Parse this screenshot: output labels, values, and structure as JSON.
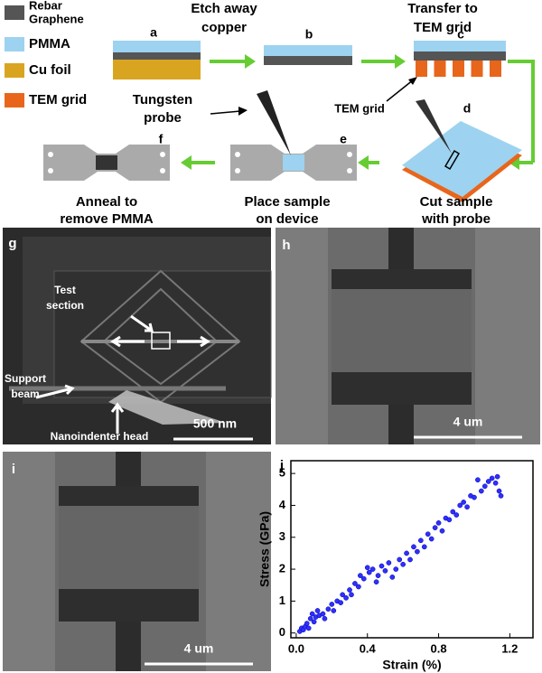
{
  "legend": [
    [
      "Rebar",
      "Graphene"
    ],
    [
      "PMMA"
    ],
    [
      "Cu foil"
    ],
    [
      "TEM grid"
    ]
  ],
  "schematic": {
    "letters": [
      "a",
      "b",
      "c",
      "d",
      "e",
      "f"
    ],
    "etch": [
      "Etch away",
      "copper"
    ],
    "transfer": [
      "Transfer to",
      "TEM grid"
    ],
    "tem_grid": "TEM grid",
    "probe": [
      "Tungsten",
      "probe"
    ],
    "cut": [
      "Cut sample",
      "with probe"
    ],
    "place": [
      "Place sample",
      "on device"
    ],
    "anneal": [
      "Anneal to",
      "remove PMMA"
    ]
  },
  "sem": {
    "g": {
      "letter": "g",
      "test_section": [
        "Test",
        "section"
      ],
      "support_beam": [
        "Support",
        "beam"
      ],
      "indenter": "Nanoindenter head",
      "scale": "500 nm"
    },
    "h": {
      "letter": "h",
      "scale": "4 um"
    },
    "i": {
      "letter": "i",
      "scale": "4 um"
    }
  },
  "chart_data": {
    "type": "scatter",
    "panel_letter": "j",
    "x_label": "Strain (%)",
    "y_label": "Stress (GPa)",
    "x": [
      0.02,
      0.03,
      0.04,
      0.05,
      0.06,
      0.07,
      0.08,
      0.09,
      0.1,
      0.11,
      0.12,
      0.13,
      0.15,
      0.16,
      0.18,
      0.2,
      0.21,
      0.23,
      0.25,
      0.26,
      0.28,
      0.3,
      0.31,
      0.33,
      0.35,
      0.36,
      0.38,
      0.4,
      0.41,
      0.43,
      0.45,
      0.46,
      0.48,
      0.5,
      0.52,
      0.54,
      0.56,
      0.58,
      0.6,
      0.62,
      0.64,
      0.66,
      0.68,
      0.7,
      0.72,
      0.74,
      0.76,
      0.78,
      0.8,
      0.82,
      0.84,
      0.86,
      0.88,
      0.9,
      0.92,
      0.94,
      0.96,
      0.98,
      1.0,
      1.02,
      1.04,
      1.06,
      1.08,
      1.1,
      1.12,
      1.13,
      1.14,
      1.15
    ],
    "y": [
      0.05,
      0.15,
      0.1,
      0.2,
      0.3,
      0.15,
      0.45,
      0.6,
      0.35,
      0.5,
      0.7,
      0.55,
      0.6,
      0.45,
      0.75,
      0.9,
      0.7,
      1.0,
      0.95,
      1.2,
      1.1,
      1.35,
      1.2,
      1.55,
      1.45,
      1.8,
      1.7,
      2.05,
      1.9,
      2.0,
      1.6,
      1.8,
      2.1,
      1.95,
      2.2,
      1.75,
      2.0,
      2.3,
      2.15,
      2.5,
      2.3,
      2.7,
      2.55,
      2.9,
      2.7,
      3.1,
      2.95,
      3.3,
      3.45,
      3.2,
      3.6,
      3.55,
      3.8,
      3.7,
      4.0,
      4.1,
      3.95,
      4.3,
      4.25,
      4.8,
      4.45,
      4.6,
      4.75,
      4.85,
      4.7,
      4.9,
      4.45,
      4.3
    ],
    "color": "#2f2fff",
    "xlim": [
      -0.03,
      1.33
    ],
    "ylim": [
      -0.15,
      5.4
    ],
    "xticks": [
      {
        "value": 0,
        "label": "0.0"
      },
      0.4,
      0.8,
      1.2
    ],
    "yticks": [
      0,
      1,
      2,
      3,
      4,
      5
    ]
  }
}
